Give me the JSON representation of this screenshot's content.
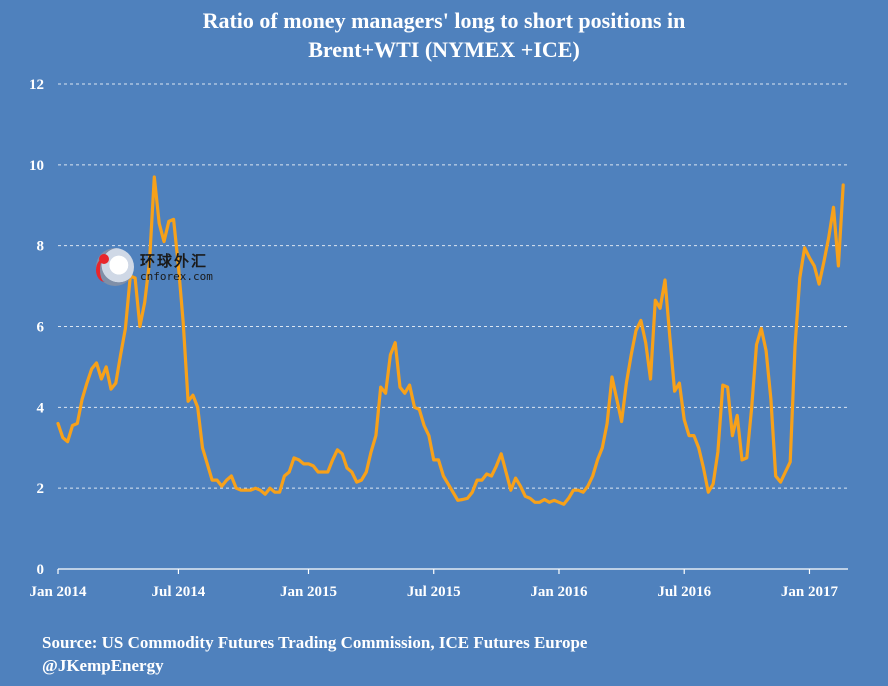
{
  "chart_data": {
    "type": "line",
    "title_lines": [
      "Ratio of  money managers' long to short positions in",
      "Brent+WTI (NYMEX +ICE)"
    ],
    "xlabel": "",
    "ylabel": "",
    "ylim": [
      0,
      12
    ],
    "yticks": [
      0,
      2,
      4,
      6,
      8,
      10,
      12
    ],
    "x_range": [
      "2014-01-07",
      "2017-02-28"
    ],
    "x_ticks": [
      {
        "date": "2014-01-07",
        "label": "Jan 2014"
      },
      {
        "date": "2014-07-01",
        "label": "Jul 2014"
      },
      {
        "date": "2015-01-06",
        "label": "Jan 2015"
      },
      {
        "date": "2015-07-07",
        "label": "Jul 2015"
      },
      {
        "date": "2016-01-05",
        "label": "Jan 2016"
      },
      {
        "date": "2016-07-05",
        "label": "Jul 2016"
      },
      {
        "date": "2017-01-03",
        "label": "Jan 2017"
      }
    ],
    "grid": "horizontal dashed",
    "legend": "none",
    "series": [
      {
        "color": "#f7a11a",
        "points": [
          [
            "2014-01-07",
            3.6
          ],
          [
            "2014-01-14",
            3.25
          ],
          [
            "2014-01-21",
            3.15
          ],
          [
            "2014-01-28",
            3.55
          ],
          [
            "2014-02-04",
            3.6
          ],
          [
            "2014-02-11",
            4.2
          ],
          [
            "2014-02-18",
            4.6
          ],
          [
            "2014-02-25",
            4.95
          ],
          [
            "2014-03-04",
            5.1
          ],
          [
            "2014-03-11",
            4.7
          ],
          [
            "2014-03-18",
            5.0
          ],
          [
            "2014-03-25",
            4.45
          ],
          [
            "2014-04-01",
            4.6
          ],
          [
            "2014-04-08",
            5.3
          ],
          [
            "2014-04-15",
            5.95
          ],
          [
            "2014-04-22",
            7.25
          ],
          [
            "2014-04-29",
            7.2
          ],
          [
            "2014-05-06",
            6.0
          ],
          [
            "2014-05-13",
            6.6
          ],
          [
            "2014-05-20",
            7.6
          ],
          [
            "2014-05-27",
            9.7
          ],
          [
            "2014-06-03",
            8.55
          ],
          [
            "2014-06-10",
            8.1
          ],
          [
            "2014-06-17",
            8.6
          ],
          [
            "2014-06-24",
            8.65
          ],
          [
            "2014-07-01",
            7.5
          ],
          [
            "2014-07-08",
            6.1
          ],
          [
            "2014-07-15",
            4.15
          ],
          [
            "2014-07-22",
            4.3
          ],
          [
            "2014-07-29",
            4.0
          ],
          [
            "2014-08-05",
            3.0
          ],
          [
            "2014-08-12",
            2.6
          ],
          [
            "2014-08-19",
            2.2
          ],
          [
            "2014-08-26",
            2.2
          ],
          [
            "2014-09-02",
            2.05
          ],
          [
            "2014-09-09",
            2.2
          ],
          [
            "2014-09-16",
            2.3
          ],
          [
            "2014-09-23",
            2.0
          ],
          [
            "2014-09-30",
            1.95
          ],
          [
            "2014-10-07",
            1.95
          ],
          [
            "2014-10-14",
            1.95
          ],
          [
            "2014-10-21",
            2.0
          ],
          [
            "2014-10-28",
            1.95
          ],
          [
            "2014-11-04",
            1.85
          ],
          [
            "2014-11-11",
            2.0
          ],
          [
            "2014-11-18",
            1.9
          ],
          [
            "2014-11-25",
            1.9
          ],
          [
            "2014-12-02",
            2.3
          ],
          [
            "2014-12-09",
            2.4
          ],
          [
            "2014-12-16",
            2.75
          ],
          [
            "2014-12-23",
            2.7
          ],
          [
            "2014-12-30",
            2.6
          ],
          [
            "2015-01-06",
            2.6
          ],
          [
            "2015-01-13",
            2.55
          ],
          [
            "2015-01-20",
            2.4
          ],
          [
            "2015-01-27",
            2.4
          ],
          [
            "2015-02-03",
            2.4
          ],
          [
            "2015-02-10",
            2.7
          ],
          [
            "2015-02-17",
            2.95
          ],
          [
            "2015-02-24",
            2.85
          ],
          [
            "2015-03-03",
            2.5
          ],
          [
            "2015-03-10",
            2.4
          ],
          [
            "2015-03-17",
            2.15
          ],
          [
            "2015-03-24",
            2.2
          ],
          [
            "2015-03-31",
            2.4
          ],
          [
            "2015-04-07",
            2.9
          ],
          [
            "2015-04-14",
            3.3
          ],
          [
            "2015-04-21",
            4.5
          ],
          [
            "2015-04-28",
            4.35
          ],
          [
            "2015-05-05",
            5.3
          ],
          [
            "2015-05-12",
            5.6
          ],
          [
            "2015-05-19",
            4.5
          ],
          [
            "2015-05-26",
            4.35
          ],
          [
            "2015-06-02",
            4.55
          ],
          [
            "2015-06-09",
            4.0
          ],
          [
            "2015-06-16",
            3.95
          ],
          [
            "2015-06-23",
            3.55
          ],
          [
            "2015-06-30",
            3.3
          ],
          [
            "2015-07-07",
            2.7
          ],
          [
            "2015-07-14",
            2.7
          ],
          [
            "2015-07-21",
            2.3
          ],
          [
            "2015-07-28",
            2.1
          ],
          [
            "2015-08-04",
            1.9
          ],
          [
            "2015-08-11",
            1.7
          ],
          [
            "2015-08-18",
            1.72
          ],
          [
            "2015-08-25",
            1.75
          ],
          [
            "2015-09-01",
            1.9
          ],
          [
            "2015-09-08",
            2.2
          ],
          [
            "2015-09-15",
            2.2
          ],
          [
            "2015-09-22",
            2.35
          ],
          [
            "2015-09-29",
            2.3
          ],
          [
            "2015-10-06",
            2.55
          ],
          [
            "2015-10-13",
            2.85
          ],
          [
            "2015-10-20",
            2.4
          ],
          [
            "2015-10-27",
            1.95
          ],
          [
            "2015-11-03",
            2.25
          ],
          [
            "2015-11-10",
            2.05
          ],
          [
            "2015-11-17",
            1.8
          ],
          [
            "2015-11-24",
            1.75
          ],
          [
            "2015-12-01",
            1.65
          ],
          [
            "2015-12-08",
            1.65
          ],
          [
            "2015-12-15",
            1.72
          ],
          [
            "2015-12-22",
            1.65
          ],
          [
            "2015-12-29",
            1.7
          ],
          [
            "2016-01-05",
            1.65
          ],
          [
            "2016-01-12",
            1.6
          ],
          [
            "2016-01-19",
            1.75
          ],
          [
            "2016-01-26",
            1.95
          ],
          [
            "2016-02-02",
            1.95
          ],
          [
            "2016-02-09",
            1.9
          ],
          [
            "2016-02-16",
            2.05
          ],
          [
            "2016-02-23",
            2.3
          ],
          [
            "2016-03-01",
            2.7
          ],
          [
            "2016-03-08",
            3.0
          ],
          [
            "2016-03-15",
            3.6
          ],
          [
            "2016-03-22",
            4.75
          ],
          [
            "2016-03-29",
            4.2
          ],
          [
            "2016-04-05",
            3.65
          ],
          [
            "2016-04-12",
            4.6
          ],
          [
            "2016-04-19",
            5.3
          ],
          [
            "2016-04-26",
            5.9
          ],
          [
            "2016-05-03",
            6.15
          ],
          [
            "2016-05-10",
            5.6
          ],
          [
            "2016-05-17",
            4.7
          ],
          [
            "2016-05-24",
            6.65
          ],
          [
            "2016-05-31",
            6.45
          ],
          [
            "2016-06-07",
            7.15
          ],
          [
            "2016-06-14",
            5.75
          ],
          [
            "2016-06-21",
            4.4
          ],
          [
            "2016-06-28",
            4.6
          ],
          [
            "2016-07-05",
            3.7
          ],
          [
            "2016-07-12",
            3.3
          ],
          [
            "2016-07-19",
            3.3
          ],
          [
            "2016-07-26",
            3.0
          ],
          [
            "2016-08-02",
            2.5
          ],
          [
            "2016-08-09",
            1.9
          ],
          [
            "2016-08-16",
            2.1
          ],
          [
            "2016-08-23",
            2.9
          ],
          [
            "2016-08-30",
            4.55
          ],
          [
            "2016-09-06",
            4.5
          ],
          [
            "2016-09-13",
            3.3
          ],
          [
            "2016-09-20",
            3.8
          ],
          [
            "2016-09-27",
            2.7
          ],
          [
            "2016-10-04",
            2.75
          ],
          [
            "2016-10-11",
            4.0
          ],
          [
            "2016-10-18",
            5.55
          ],
          [
            "2016-10-25",
            5.95
          ],
          [
            "2016-11-01",
            5.4
          ],
          [
            "2016-11-08",
            4.2
          ],
          [
            "2016-11-15",
            2.3
          ],
          [
            "2016-11-22",
            2.15
          ],
          [
            "2016-11-29",
            2.4
          ],
          [
            "2016-12-06",
            2.65
          ],
          [
            "2016-12-13",
            5.5
          ],
          [
            "2016-12-20",
            7.2
          ],
          [
            "2016-12-27",
            7.95
          ],
          [
            "2017-01-03",
            7.7
          ],
          [
            "2017-01-10",
            7.5
          ],
          [
            "2017-01-17",
            7.05
          ],
          [
            "2017-01-24",
            7.6
          ],
          [
            "2017-01-31",
            8.2
          ],
          [
            "2017-02-07",
            8.95
          ],
          [
            "2017-02-14",
            7.5
          ],
          [
            "2017-02-21",
            9.5
          ]
        ]
      }
    ]
  },
  "source": {
    "line1": "Source: US Commodity Futures Trading Commission, ICE Futures Europe",
    "line2": "@JKempEnergy"
  },
  "watermark": {
    "text_cn": "环球外汇",
    "text_en": "cnforex.com"
  }
}
